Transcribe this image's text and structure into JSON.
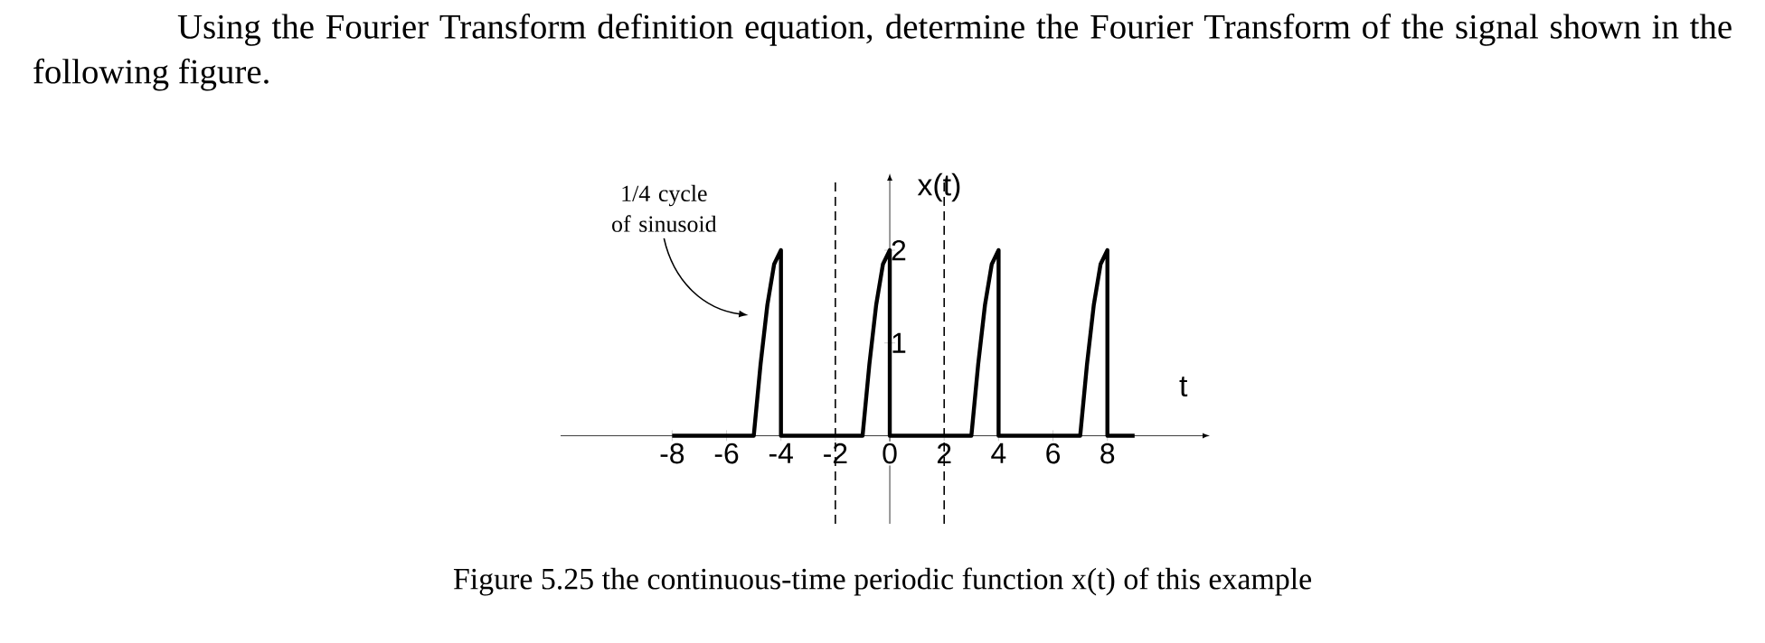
{
  "chart_data": {
    "type": "line",
    "title": "Using the Fourier Transform definition equation, determine the Fourier Transform of the signal shown in the following figure.",
    "xlabel": "t",
    "ylabel": "x(t)",
    "annotations": [
      "1/4 cycle of sinusoid",
      "Figure 5.25 the continuous-time periodic function x(t) of this example"
    ],
    "series": [
      {
        "color": "#000000",
        "x": [
          -8,
          -5,
          -4.75,
          -4.5,
          -4.25,
          -4,
          -4,
          -1,
          -0.75,
          -0.5,
          -0.25,
          0,
          0,
          3,
          3.25,
          3.5,
          3.75,
          4,
          4,
          7,
          7.25,
          7.5,
          7.75,
          8,
          8,
          9
        ],
        "values": [
          0,
          0,
          0.77,
          1.41,
          1.85,
          2,
          0,
          0,
          0.77,
          1.41,
          1.85,
          2,
          0,
          0,
          0.77,
          1.41,
          1.85,
          2,
          0,
          0,
          0.77,
          1.41,
          1.85,
          2,
          0,
          0
        ]
      }
    ],
    "xlim": [
      -12.1,
      11.5
    ],
    "ylim": [
      -0.95,
      2.75
    ],
    "xticks": [
      -8,
      -6,
      -4,
      -2,
      0,
      2,
      4,
      6,
      8
    ],
    "yticks": [
      1,
      2
    ],
    "ref_lines": [
      {
        "axis": "x",
        "value": -2,
        "line_style": "dashed"
      },
      {
        "axis": "x",
        "value": 2,
        "line_style": "dashed"
      }
    ]
  }
}
